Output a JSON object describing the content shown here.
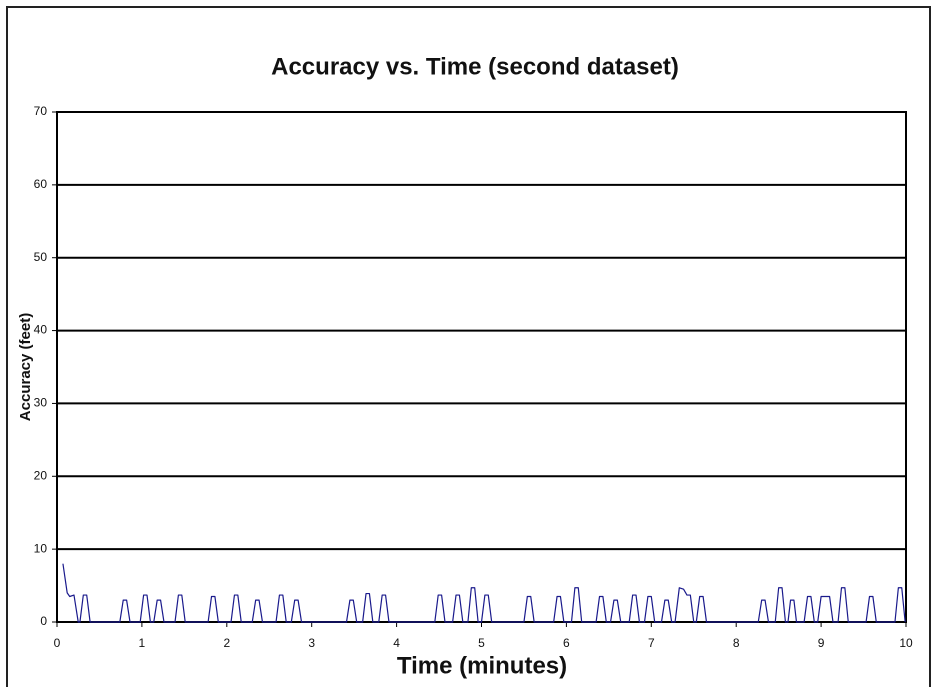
{
  "chart_data": {
    "type": "line",
    "title": "Accuracy vs. Time (second dataset)",
    "x_label": "Time (minutes)",
    "y_label": "Accuracy (feet)",
    "xlim": [
      0,
      10
    ],
    "xticks": [
      0,
      1,
      2,
      3,
      4,
      5,
      6,
      7,
      8,
      9,
      10
    ],
    "ylim": [
      0,
      70
    ],
    "yticks": [
      0,
      10,
      20,
      30,
      40,
      50,
      60,
      70
    ],
    "grid": true,
    "series": [
      {
        "color": "#1a1a8c",
        "x": [
          0.07,
          0.12,
          0.15,
          0.2,
          0.25,
          0.27,
          0.31,
          0.35,
          0.39,
          0.74,
          0.78,
          0.82,
          0.86,
          0.98,
          1.02,
          1.06,
          1.1,
          1.14,
          1.18,
          1.22,
          1.26,
          1.39,
          1.43,
          1.47,
          1.51,
          1.78,
          1.82,
          1.86,
          1.9,
          2.05,
          2.09,
          2.13,
          2.17,
          2.3,
          2.34,
          2.38,
          2.42,
          2.58,
          2.62,
          2.66,
          2.7,
          2.76,
          2.8,
          2.84,
          2.88,
          3.41,
          3.45,
          3.49,
          3.53,
          3.6,
          3.64,
          3.68,
          3.72,
          3.79,
          3.83,
          3.87,
          3.91,
          4.45,
          4.49,
          4.53,
          4.57,
          4.66,
          4.7,
          4.74,
          4.78,
          4.84,
          4.88,
          4.92,
          4.96,
          5.0,
          5.04,
          5.08,
          5.12,
          5.5,
          5.54,
          5.58,
          5.62,
          5.85,
          5.89,
          5.93,
          5.97,
          6.06,
          6.1,
          6.14,
          6.18,
          6.35,
          6.39,
          6.43,
          6.47,
          6.52,
          6.56,
          6.6,
          6.64,
          6.74,
          6.78,
          6.82,
          6.86,
          6.92,
          6.96,
          7.0,
          7.04,
          7.12,
          7.16,
          7.2,
          7.24,
          7.28,
          7.33,
          7.38,
          7.42,
          7.46,
          7.5,
          7.53,
          7.57,
          7.61,
          7.65,
          8.26,
          8.3,
          8.34,
          8.38,
          8.46,
          8.5,
          8.54,
          8.58,
          8.61,
          8.64,
          8.68,
          8.71,
          8.8,
          8.84,
          8.88,
          8.92,
          8.96,
          9.0,
          9.1,
          9.14,
          9.2,
          9.24,
          9.28,
          9.32,
          9.53,
          9.57,
          9.61,
          9.65,
          9.87,
          9.91,
          9.95,
          9.99
        ],
        "values": [
          8,
          4,
          3.5,
          3.7,
          0,
          0,
          3.7,
          3.7,
          0,
          0,
          3,
          3,
          0,
          0,
          3.7,
          3.7,
          0,
          0,
          3,
          3,
          0,
          0,
          3.7,
          3.7,
          0,
          0,
          3.5,
          3.5,
          0,
          0,
          3.7,
          3.7,
          0,
          0,
          3,
          3,
          0,
          0,
          3.7,
          3.7,
          0,
          0,
          3,
          3,
          0,
          0,
          3,
          3,
          0,
          0,
          3.9,
          3.9,
          0,
          0,
          3.7,
          3.7,
          0,
          0,
          3.7,
          3.7,
          0,
          0,
          3.7,
          3.7,
          0,
          0,
          4.7,
          4.7,
          0,
          0,
          3.7,
          3.7,
          0,
          0,
          3.5,
          3.5,
          0,
          0,
          3.5,
          3.5,
          0,
          0,
          4.7,
          4.7,
          0,
          0,
          3.5,
          3.5,
          0,
          0,
          3,
          3,
          0,
          0,
          3.7,
          3.7,
          0,
          0,
          3.5,
          3.5,
          0,
          0,
          3,
          3,
          0,
          0,
          4.7,
          4.5,
          3.7,
          3.7,
          0,
          0,
          3.5,
          3.5,
          0,
          0,
          3,
          3,
          0,
          0,
          4.7,
          4.7,
          0,
          0,
          3,
          3,
          0,
          0,
          3.5,
          3.5,
          0,
          0,
          3.5,
          3.5,
          0,
          0,
          4.7,
          4.7,
          0,
          0,
          3.5,
          3.5,
          0,
          0,
          4.7,
          4.7,
          0
        ]
      }
    ]
  }
}
